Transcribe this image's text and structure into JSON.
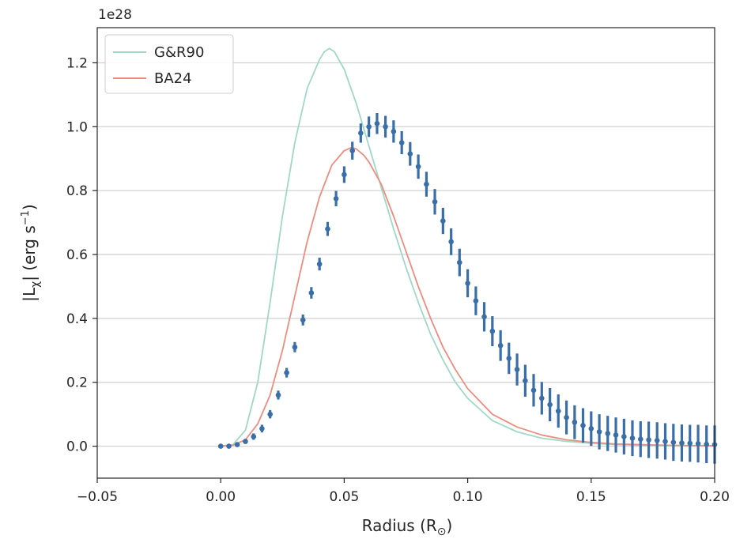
{
  "chart_data": {
    "type": "line",
    "title": "",
    "xlabel": "Radius (R",
    "xlabel_sub": "⊙",
    "xlabel_close": ")",
    "ylabel_main": "|L",
    "ylabel_sub": "χ",
    "ylabel_rest": "| (erg s",
    "ylabel_sup": "−1",
    "ylabel_close": ")",
    "y_offset_label": "1e28",
    "xlim": [
      -0.05,
      0.2
    ],
    "ylim": [
      -0.1,
      1.31
    ],
    "x_ticks": [
      -0.05,
      0.0,
      0.05,
      0.1,
      0.15,
      0.2
    ],
    "x_tick_labels": [
      "−0.05",
      "0.00",
      "0.05",
      "0.10",
      "0.15",
      "0.20"
    ],
    "y_ticks": [
      0.0,
      0.2,
      0.4,
      0.6,
      0.8,
      1.0,
      1.2
    ],
    "y_tick_labels": [
      "0.0",
      "0.2",
      "0.4",
      "0.6",
      "0.8",
      "1.0",
      "1.2"
    ],
    "grid": "horizontal",
    "legend_position": "top-left",
    "series": [
      {
        "name": "G&R90",
        "kind": "line",
        "color": "#9fd8c7",
        "x": [
          0.0,
          0.005,
          0.01,
          0.015,
          0.02,
          0.025,
          0.03,
          0.035,
          0.04,
          0.042,
          0.044,
          0.046,
          0.05,
          0.055,
          0.06,
          0.065,
          0.07,
          0.075,
          0.08,
          0.085,
          0.09,
          0.095,
          0.1,
          0.11,
          0.12,
          0.13,
          0.14,
          0.15,
          0.16,
          0.18,
          0.2
        ],
        "y": [
          0.0,
          0.005,
          0.05,
          0.2,
          0.45,
          0.72,
          0.95,
          1.12,
          1.21,
          1.235,
          1.245,
          1.235,
          1.18,
          1.07,
          0.94,
          0.81,
          0.68,
          0.56,
          0.45,
          0.35,
          0.27,
          0.2,
          0.15,
          0.08,
          0.045,
          0.025,
          0.015,
          0.009,
          0.005,
          0.002,
          0.001
        ]
      },
      {
        "name": "BA24",
        "kind": "line",
        "color": "#ec8d80",
        "x": [
          0.0,
          0.005,
          0.01,
          0.015,
          0.02,
          0.025,
          0.03,
          0.035,
          0.04,
          0.045,
          0.05,
          0.053,
          0.055,
          0.058,
          0.06,
          0.065,
          0.07,
          0.075,
          0.08,
          0.085,
          0.09,
          0.095,
          0.1,
          0.11,
          0.12,
          0.13,
          0.14,
          0.15,
          0.16,
          0.18,
          0.2
        ],
        "y": [
          0.0,
          0.003,
          0.02,
          0.07,
          0.16,
          0.3,
          0.47,
          0.64,
          0.78,
          0.88,
          0.925,
          0.935,
          0.93,
          0.91,
          0.89,
          0.82,
          0.72,
          0.61,
          0.5,
          0.4,
          0.31,
          0.24,
          0.18,
          0.1,
          0.06,
          0.035,
          0.02,
          0.012,
          0.007,
          0.003,
          0.001
        ]
      },
      {
        "name": "",
        "kind": "errorbar",
        "color": "#3a6ea8",
        "x": [
          0.0,
          0.0033,
          0.0067,
          0.01,
          0.0133,
          0.0167,
          0.02,
          0.0233,
          0.0267,
          0.03,
          0.0333,
          0.0367,
          0.04,
          0.0433,
          0.0467,
          0.05,
          0.0533,
          0.0567,
          0.06,
          0.0633,
          0.0667,
          0.07,
          0.0733,
          0.0767,
          0.08,
          0.0833,
          0.0867,
          0.09,
          0.0933,
          0.0967,
          0.1,
          0.1033,
          0.1067,
          0.11,
          0.1133,
          0.1167,
          0.12,
          0.1233,
          0.1267,
          0.13,
          0.1333,
          0.1367,
          0.14,
          0.1433,
          0.1467,
          0.15,
          0.1533,
          0.1567,
          0.16,
          0.1633,
          0.1667,
          0.17,
          0.1733,
          0.1767,
          0.18,
          0.1833,
          0.1867,
          0.19,
          0.1933,
          0.1967,
          0.2
        ],
        "y": [
          0.0,
          0.0,
          0.005,
          0.015,
          0.03,
          0.055,
          0.1,
          0.16,
          0.23,
          0.31,
          0.395,
          0.48,
          0.57,
          0.68,
          0.775,
          0.85,
          0.925,
          0.98,
          1.0,
          1.01,
          1.0,
          0.985,
          0.95,
          0.915,
          0.875,
          0.82,
          0.765,
          0.705,
          0.64,
          0.575,
          0.51,
          0.455,
          0.405,
          0.36,
          0.315,
          0.275,
          0.24,
          0.205,
          0.175,
          0.15,
          0.13,
          0.11,
          0.09,
          0.075,
          0.065,
          0.055,
          0.045,
          0.04,
          0.035,
          0.03,
          0.025,
          0.022,
          0.02,
          0.018,
          0.015,
          0.012,
          0.01,
          0.009,
          0.008,
          0.006,
          0.005
        ],
        "err": [
          0.005,
          0.005,
          0.006,
          0.008,
          0.01,
          0.012,
          0.013,
          0.014,
          0.015,
          0.016,
          0.017,
          0.018,
          0.02,
          0.022,
          0.024,
          0.026,
          0.028,
          0.03,
          0.032,
          0.033,
          0.034,
          0.035,
          0.036,
          0.037,
          0.038,
          0.039,
          0.04,
          0.041,
          0.042,
          0.043,
          0.044,
          0.045,
          0.046,
          0.047,
          0.048,
          0.049,
          0.05,
          0.05,
          0.051,
          0.051,
          0.052,
          0.052,
          0.053,
          0.053,
          0.054,
          0.054,
          0.055,
          0.055,
          0.055,
          0.056,
          0.056,
          0.056,
          0.057,
          0.057,
          0.057,
          0.058,
          0.058,
          0.058,
          0.059,
          0.059,
          0.06
        ]
      }
    ]
  }
}
